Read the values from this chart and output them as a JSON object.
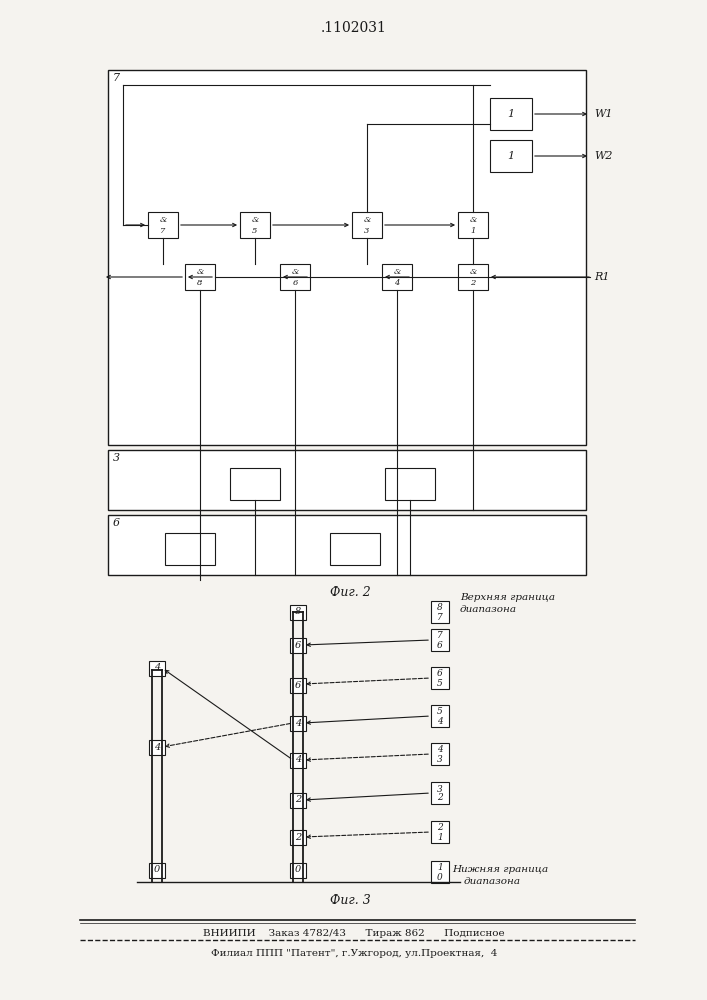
{
  "title": ".1102031",
  "fig2_caption": "Фиг. 2",
  "fig3_caption": "Фиг. 3",
  "footer_line1": "ВНИИПИ    Заказ 4782/43      Тираж 862      Подписное",
  "footer_line2": "Филиал ППП \"Патент\", г.Ужгород, ул.Проектная,  4",
  "bg_color": "#f5f3ef",
  "box_color": "#1a1a1a",
  "line_color": "#1a1a1a"
}
